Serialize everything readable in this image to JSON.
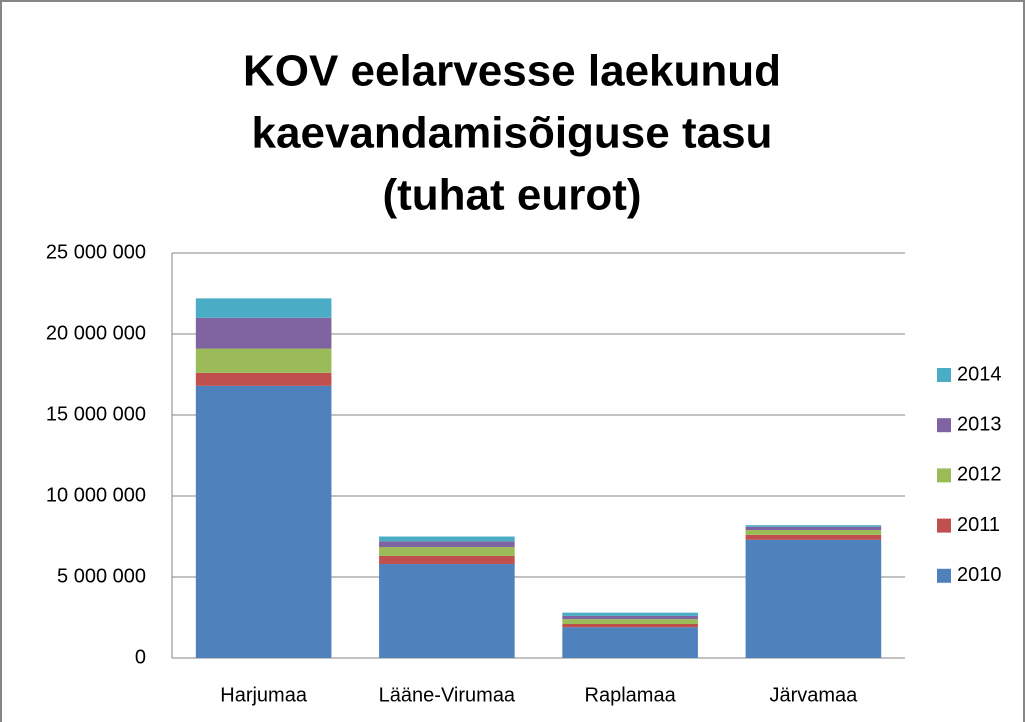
{
  "chart_data": {
    "type": "stacked_bar",
    "title": [
      "KOV eelarvesse laekunud",
      "kaevandamisõiguse tasu",
      "(tuhat eurot)"
    ],
    "categories": [
      "Harjumaa",
      "Lääne-Virumaa",
      "Raplamaa",
      "Järvamaa"
    ],
    "series": [
      {
        "name": "2010",
        "color": "#4f81bd",
        "values": [
          16800000,
          5800000,
          1900000,
          7300000
        ]
      },
      {
        "name": "2011",
        "color": "#c0504d",
        "values": [
          800000,
          500000,
          200000,
          300000
        ]
      },
      {
        "name": "2012",
        "color": "#9bbb59",
        "values": [
          1500000,
          550000,
          300000,
          300000
        ]
      },
      {
        "name": "2013",
        "color": "#8064a2",
        "values": [
          1900000,
          350000,
          200000,
          200000
        ]
      },
      {
        "name": "2014",
        "color": "#4bacc6",
        "values": [
          1200000,
          300000,
          200000,
          100000
        ]
      }
    ],
    "ylim": [
      0,
      25000000
    ],
    "yticks": [
      0,
      {
        "value": 5000000,
        "label": "5 000 000"
      },
      {
        "value": 10000000,
        "label": "10 000 000"
      },
      {
        "value": 15000000,
        "label": "15 000 000"
      },
      {
        "value": 20000000,
        "label": "20 000 000"
      },
      {
        "value": 25000000,
        "label": "25 000 000"
      }
    ],
    "grid": true,
    "legend": "right"
  }
}
